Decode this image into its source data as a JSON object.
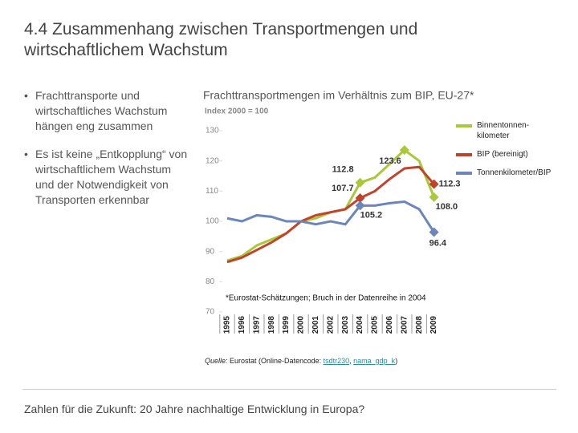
{
  "slide_title": "4.4 Zusammenhang zwischen Transportmengen und wirtschaftlichem Wachstum",
  "bullets": [
    "Frachttransporte und wirtschaftliches Wachstum hängen eng zusammen",
    "Es ist keine „Entkopplung“ von wirtschaftlichem Wachstum und der Notwendigkeit von Transporten erkennbar"
  ],
  "chart_data": {
    "type": "line",
    "title": "Frachttransportmengen im Verhältnis zum BIP, EU-27*",
    "subtitle": "Index 2000 = 100",
    "footnote": "*Eurostat-Schätzungen; Bruch in der Datenreihe in 2004",
    "categories": [
      "1995",
      "1996",
      "1997",
      "1998",
      "1999",
      "2000",
      "2001",
      "2002",
      "2003",
      "2004",
      "2005",
      "2006",
      "2007",
      "2008",
      "2009"
    ],
    "ylim": [
      70,
      130
    ],
    "yticks": [
      70,
      80,
      90,
      100,
      110,
      120,
      130
    ],
    "grid": false,
    "series": [
      {
        "name": "Binnentonnen-kilometer",
        "color": "#a9c83a",
        "values": [
          87,
          88.5,
          92,
          94,
          96,
          100,
          101,
          103,
          104,
          112.8,
          114.5,
          119,
          123.6,
          120,
          108.0
        ],
        "value_labels": [
          null,
          null,
          null,
          null,
          null,
          null,
          null,
          null,
          null,
          "112.8",
          null,
          null,
          "123.6",
          null,
          "108.0"
        ]
      },
      {
        "name": "BIP (bereinigt)",
        "color": "#c0432c",
        "values": [
          86.5,
          88,
          90.5,
          93,
          96,
          100,
          102,
          103,
          104,
          107.7,
          110,
          114,
          117.5,
          118,
          112.3
        ],
        "value_labels": [
          null,
          null,
          null,
          null,
          null,
          null,
          null,
          null,
          null,
          "107.7",
          null,
          null,
          null,
          null,
          "112.3"
        ]
      },
      {
        "name": "Tonnenkilometer/BIP",
        "color": "#6b86b8",
        "values": [
          101,
          100,
          102,
          101.5,
          100,
          100,
          99,
          100,
          99,
          105.2,
          105.2,
          106,
          106.5,
          104,
          96.4
        ],
        "value_labels": [
          null,
          null,
          null,
          null,
          null,
          null,
          null,
          null,
          null,
          "105.2",
          null,
          null,
          null,
          null,
          "96.4"
        ]
      }
    ]
  },
  "source": {
    "label": "Quelle:",
    "text": " Eurostat (Online-Datencode: ",
    "code1": "tsdtr230",
    "sep": ", ",
    "code2": "nama_gdp_k",
    "end": ")"
  },
  "footer": "Zahlen für die Zukunft: 20 Jahre nachhaltige Entwicklung in Europa?"
}
